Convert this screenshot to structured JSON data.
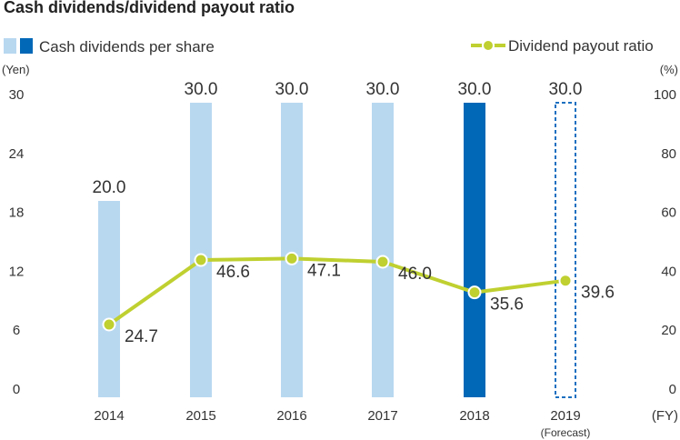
{
  "chart_data": {
    "type": "bar",
    "title": "Cash dividends/dividend payout ratio",
    "x_unit": "(FY)",
    "categories": [
      "2014",
      "2015",
      "2016",
      "2017",
      "2018",
      "2019"
    ],
    "category_sublabels": [
      "",
      "",
      "",
      "",
      "",
      "(Forecast)"
    ],
    "legend_placement": "top",
    "grid": false,
    "series": [
      {
        "name": "Cash dividends per share",
        "kind": "bar",
        "axis": "left",
        "values": [
          20.0,
          30.0,
          30.0,
          30.0,
          30.0,
          30.0
        ],
        "labels": [
          "20.0",
          "30.0",
          "30.0",
          "30.0",
          "30.0",
          "30.0"
        ],
        "styles": [
          "light",
          "light",
          "light",
          "light",
          "dark",
          "forecast"
        ],
        "colors": {
          "light": "#b8d8f0",
          "dark": "#0068b7",
          "forecast": "#1a6fc0"
        }
      },
      {
        "name": "Dividend payout ratio",
        "kind": "line",
        "axis": "right",
        "values": [
          24.7,
          46.6,
          47.1,
          46.0,
          35.6,
          39.6
        ],
        "labels": [
          "24.7",
          "46.6",
          "47.1",
          "46.0",
          "35.6",
          "39.6"
        ],
        "color": "#bfd030"
      }
    ],
    "y_left": {
      "unit": "(Yen)",
      "range": [
        0,
        30
      ],
      "ticks": [
        "0",
        "6",
        "12",
        "18",
        "24",
        "30"
      ]
    },
    "y_right": {
      "unit": "(%)",
      "range": [
        0,
        100
      ],
      "ticks": [
        "0",
        "20",
        "40",
        "60",
        "80",
        "100"
      ]
    }
  }
}
